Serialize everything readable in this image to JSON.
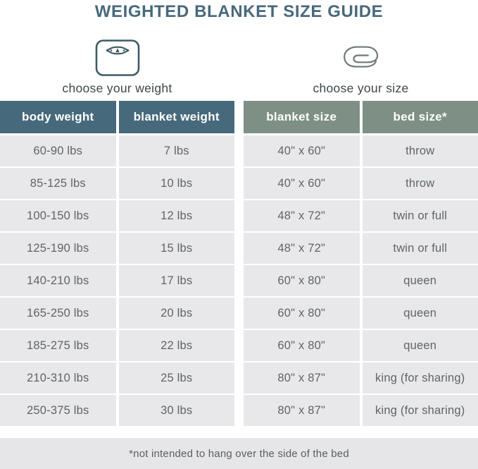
{
  "title": "WEIGHTED BLANKET SIZE GUIDE",
  "footnote": "*not intended to hang over the side of the bed",
  "colors": {
    "title_text": "#48697c",
    "weight_header_bg": "#46697c",
    "size_header_bg": "#7e9085",
    "row_bg": "#e8e8ea",
    "cell_text": "#5f6468",
    "footnote_bg": "#e6e6e8",
    "scale_icon_stroke": "#3f5a66",
    "blanket_icon_stroke": "#6e7873"
  },
  "weight_table": {
    "icon": "scale-icon",
    "caption": "choose your weight",
    "headers": [
      "body weight",
      "blanket weight"
    ],
    "rows": [
      [
        "60-90 lbs",
        "7 lbs"
      ],
      [
        "85-125 lbs",
        "10 lbs"
      ],
      [
        "100-150 lbs",
        "12 lbs"
      ],
      [
        "125-190 lbs",
        "15 lbs"
      ],
      [
        "140-210 lbs",
        "17 lbs"
      ],
      [
        "165-250 lbs",
        "20 lbs"
      ],
      [
        "185-275 lbs",
        "22 lbs"
      ],
      [
        "210-310 lbs",
        "25 lbs"
      ],
      [
        "250-375 lbs",
        "30 lbs"
      ]
    ]
  },
  "size_table": {
    "icon": "blanket-icon",
    "caption": "choose your size",
    "headers": [
      "blanket size",
      "bed size*"
    ],
    "rows": [
      [
        "40\" x 60\"",
        "throw"
      ],
      [
        "40\" x 60\"",
        "throw"
      ],
      [
        "48\" x 72\"",
        "twin or full"
      ],
      [
        "48\" x 72\"",
        "twin or full"
      ],
      [
        "60\" x 80\"",
        "queen"
      ],
      [
        "60\" x 80\"",
        "queen"
      ],
      [
        "60\" x 80\"",
        "queen"
      ],
      [
        "80\" x 87\"",
        "king (for sharing)"
      ],
      [
        "80\" x 87\"",
        "king (for sharing)"
      ]
    ]
  },
  "chart_data": [
    {
      "type": "table",
      "title": "choose your weight",
      "columns": [
        "body weight",
        "blanket weight"
      ],
      "rows": [
        [
          "60-90 lbs",
          "7 lbs"
        ],
        [
          "85-125 lbs",
          "10 lbs"
        ],
        [
          "100-150 lbs",
          "12 lbs"
        ],
        [
          "125-190 lbs",
          "15 lbs"
        ],
        [
          "140-210 lbs",
          "17 lbs"
        ],
        [
          "165-250 lbs",
          "20 lbs"
        ],
        [
          "185-275 lbs",
          "22 lbs"
        ],
        [
          "210-310 lbs",
          "25 lbs"
        ],
        [
          "250-375 lbs",
          "30 lbs"
        ]
      ]
    },
    {
      "type": "table",
      "title": "choose your size",
      "columns": [
        "blanket size",
        "bed size*"
      ],
      "rows": [
        [
          "40\" x 60\"",
          "throw"
        ],
        [
          "40\" x 60\"",
          "throw"
        ],
        [
          "48\" x 72\"",
          "twin or full"
        ],
        [
          "48\" x 72\"",
          "twin or full"
        ],
        [
          "60\" x 80\"",
          "queen"
        ],
        [
          "60\" x 80\"",
          "queen"
        ],
        [
          "60\" x 80\"",
          "queen"
        ],
        [
          "80\" x 87\"",
          "king (for sharing)"
        ],
        [
          "80\" x 87\"",
          "king (for sharing)"
        ]
      ]
    }
  ]
}
